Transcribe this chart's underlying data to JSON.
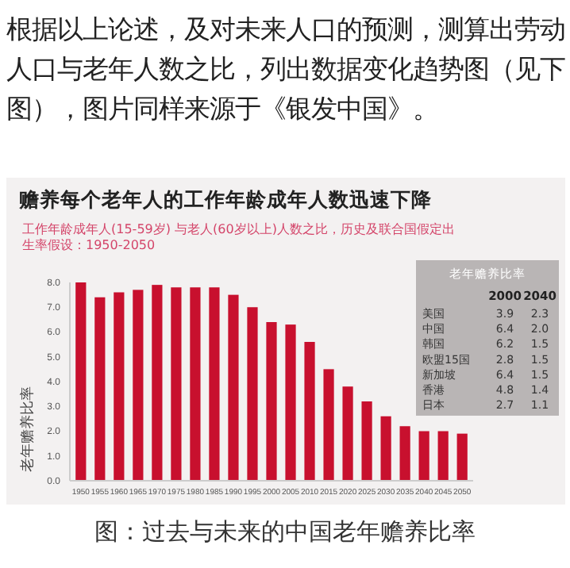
{
  "chart_data": {
    "type": "bar",
    "title": "赡养每个老年人的工作年龄成年人数迅速下降",
    "subtitle": "工作年龄成年人(15-59岁) 与老人(60岁以上)人数之比，历史及联合国假定出生率假设：1950-2050",
    "ylabel": "老年赡养比率",
    "categories": [
      "1950",
      "1955",
      "1960",
      "1965",
      "1970",
      "1975",
      "1980",
      "1985",
      "1990",
      "1995",
      "2000",
      "2005",
      "2010",
      "2015",
      "2020",
      "2025",
      "2030",
      "2035",
      "2040",
      "2045",
      "2050"
    ],
    "values": [
      8.0,
      7.4,
      7.6,
      7.7,
      7.9,
      7.8,
      7.8,
      7.8,
      7.5,
      7.0,
      6.4,
      6.3,
      5.6,
      4.5,
      3.8,
      3.2,
      2.6,
      2.2,
      2.0,
      2.0,
      1.9
    ],
    "color": "#c8102e",
    "ylim": [
      0,
      8
    ],
    "yticks": [
      {
        "value": 0,
        "label": "0.0"
      },
      {
        "value": 1,
        "label": "1.0"
      },
      {
        "value": 2,
        "label": "2.0"
      },
      {
        "value": 3,
        "label": "3.0"
      },
      {
        "value": 4,
        "label": "4.0"
      },
      {
        "value": 5,
        "label": "5.0"
      },
      {
        "value": 6,
        "label": "6.0"
      },
      {
        "value": 7,
        "label": "7.0"
      },
      {
        "value": 8,
        "label": "8.0"
      }
    ],
    "annotations": [
      "根据以上论述，及对未来人口的预测，测算出劳动人口与老年人数之比，列出数据变化趋势图（见下图），图片同样来源于《银发中国》。",
      "图：过去与未来的中国老年赡养比率",
      "老年赡养比率",
      "2000",
      "2040",
      "美国",
      "3.9",
      "2.3",
      "中国",
      "6.4",
      "2.0",
      "韩国",
      "6.2",
      "1.5",
      "欧盟15国",
      "2.8",
      "1.5",
      "新加坡",
      "6.4",
      "1.5",
      "香港",
      "4.8",
      "1.4",
      "日本",
      "2.7",
      "1.1"
    ]
  }
}
